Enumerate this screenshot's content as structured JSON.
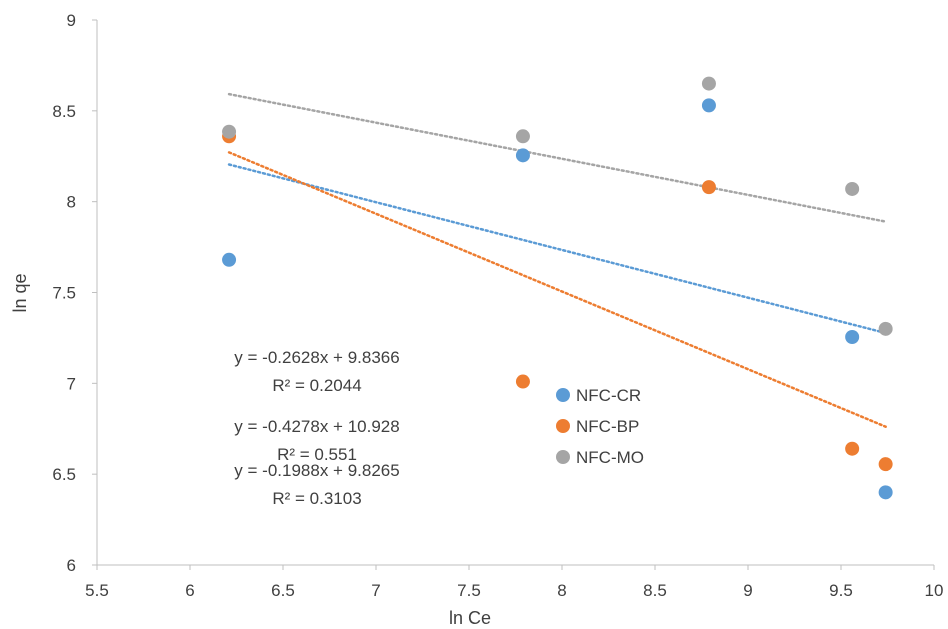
{
  "chart_data": {
    "type": "scatter",
    "xlabel": "ln Ce",
    "ylabel": "ln qe",
    "xlim": [
      5.5,
      10
    ],
    "ylim": [
      6,
      9
    ],
    "x_ticks": [
      "5.5",
      "6",
      "6.5",
      "7",
      "7.5",
      "8",
      "8.5",
      "9",
      "9.5",
      "10"
    ],
    "y_ticks": [
      "6",
      "6.5",
      "7",
      "7.5",
      "8",
      "8.5",
      "9"
    ],
    "grid": false,
    "legend_position": "center-right",
    "series": [
      {
        "name": "NFC-CR",
        "color": "#5b9bd5",
        "points": [
          [
            6.21,
            7.68
          ],
          [
            7.79,
            8.255
          ],
          [
            8.79,
            8.53
          ],
          [
            9.56,
            7.255
          ],
          [
            9.74,
            6.4
          ]
        ],
        "trendline": {
          "type": "linear",
          "slope": -0.2628,
          "intercept": 9.8366,
          "x_range": [
            6.21,
            9.74
          ]
        },
        "equation": "y = -0.2628x + 9.8366",
        "r2": "R² = 0.2044"
      },
      {
        "name": "NFC-BP",
        "color": "#ed7d31",
        "points": [
          [
            6.21,
            8.36
          ],
          [
            7.79,
            7.01
          ],
          [
            8.79,
            8.08
          ],
          [
            9.56,
            6.64
          ],
          [
            9.74,
            6.555
          ]
        ],
        "trendline": {
          "type": "linear",
          "slope": -0.4278,
          "intercept": 10.928,
          "x_range": [
            6.21,
            9.74
          ]
        },
        "equation": "y = -0.4278x + 10.928",
        "r2": "R² = 0.551"
      },
      {
        "name": "NFC-MO",
        "color": "#a5a5a5",
        "points": [
          [
            6.21,
            8.385
          ],
          [
            7.79,
            8.36
          ],
          [
            8.79,
            8.65
          ],
          [
            9.56,
            8.07
          ],
          [
            9.74,
            7.3
          ]
        ],
        "trendline": {
          "type": "linear",
          "slope": -0.1988,
          "intercept": 9.8265,
          "x_range": [
            6.21,
            9.74
          ]
        },
        "equation": "y = -0.1988x + 9.8265",
        "r2": "R² = 0.3103"
      }
    ]
  },
  "colors": {
    "axis": "#bfbfbf",
    "text": "#404040"
  }
}
